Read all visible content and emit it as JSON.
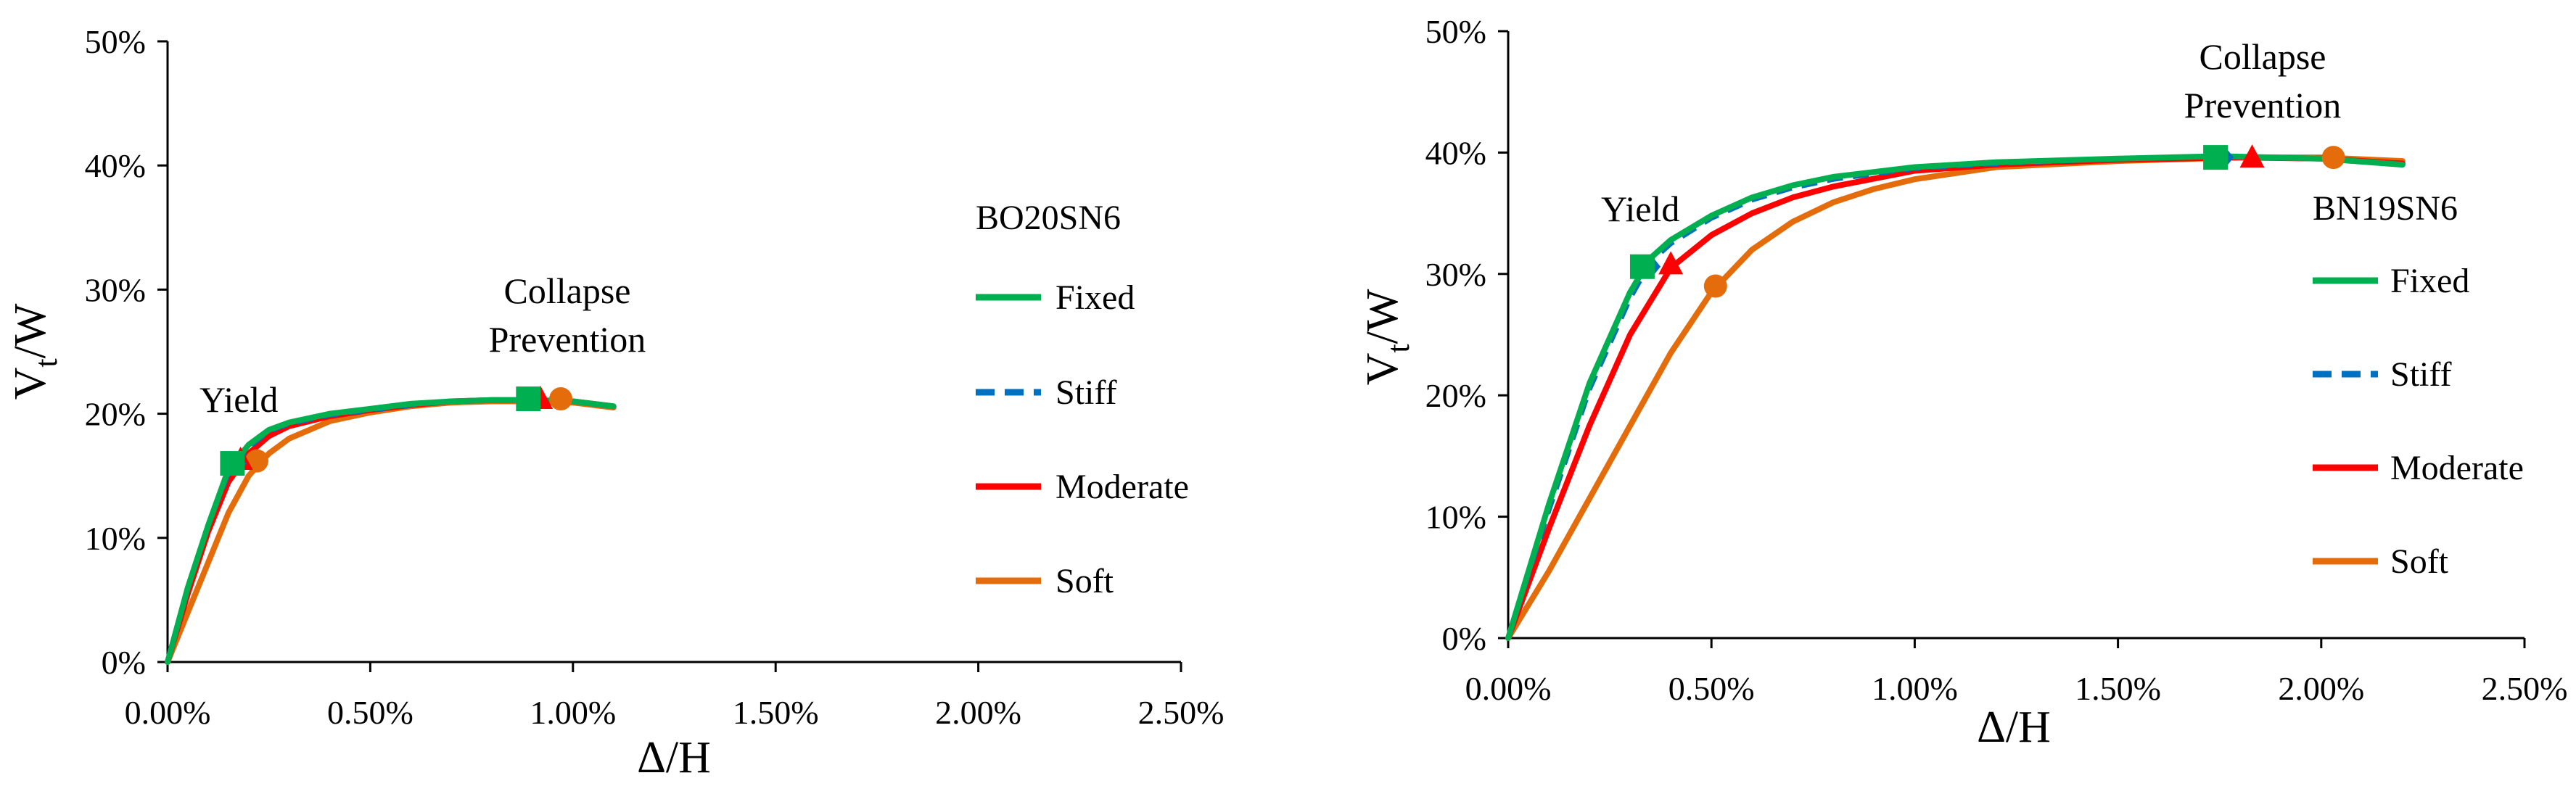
{
  "chart_data": [
    {
      "type": "line",
      "title": "",
      "xlabel": "Δ/H",
      "ylabel_main": "V",
      "ylabel_sub": "t",
      "ylabel_tail": "/W",
      "xlim": [
        0,
        2.5
      ],
      "ylim": [
        0,
        50
      ],
      "xticks": [
        0,
        0.5,
        1.0,
        1.5,
        2.0,
        2.5
      ],
      "xtick_labels": [
        "0.00%",
        "0.50%",
        "1.00%",
        "1.50%",
        "2.00%",
        "2.50%"
      ],
      "yticks": [
        0,
        10,
        20,
        30,
        40,
        50
      ],
      "ytick_labels": [
        "0%",
        "10%",
        "20%",
        "30%",
        "40%",
        "50%"
      ],
      "legend_title": "BO20SN6",
      "annotations": {
        "yield": "Yield",
        "collapse_1": "Collapse",
        "collapse_2": "Prevention"
      },
      "series": [
        {
          "name": "Fixed",
          "color": "#00B050",
          "dash": "solid",
          "x": [
            0,
            0.05,
            0.1,
            0.15,
            0.2,
            0.25,
            0.3,
            0.4,
            0.5,
            0.6,
            0.7,
            0.8,
            0.9,
            1.0,
            1.1
          ],
          "y": [
            0,
            6,
            11,
            15.5,
            17.5,
            18.7,
            19.3,
            20.0,
            20.4,
            20.8,
            21.0,
            21.1,
            21.1,
            21.0,
            20.6
          ],
          "markers": [
            {
              "x": 0.16,
              "y": 16.0,
              "shape": "square"
            },
            {
              "x": 0.89,
              "y": 21.2,
              "shape": "square"
            }
          ]
        },
        {
          "name": "Stiff",
          "color": "#0070C0",
          "dash": "dashed",
          "x": [
            0,
            0.05,
            0.1,
            0.15,
            0.2,
            0.25,
            0.3,
            0.4,
            0.5,
            0.6,
            0.7,
            0.8,
            0.9,
            1.0,
            1.1
          ],
          "y": [
            0,
            6,
            11,
            15.2,
            17.3,
            18.6,
            19.2,
            19.9,
            20.3,
            20.7,
            21.0,
            21.1,
            21.1,
            21.0,
            20.6
          ],
          "markers": [
            {
              "x": 0.17,
              "y": 16.0,
              "shape": "diamond"
            },
            {
              "x": 0.895,
              "y": 21.2,
              "shape": "diamond"
            }
          ]
        },
        {
          "name": "Moderate",
          "color": "#FF0000",
          "dash": "solid",
          "x": [
            0,
            0.05,
            0.1,
            0.15,
            0.2,
            0.25,
            0.3,
            0.4,
            0.5,
            0.6,
            0.7,
            0.8,
            0.9,
            1.0,
            1.1
          ],
          "y": [
            0,
            5.5,
            10.5,
            14.5,
            16.8,
            18.2,
            19.0,
            19.8,
            20.3,
            20.7,
            21.0,
            21.1,
            21.1,
            21.0,
            20.6
          ],
          "markers": [
            {
              "x": 0.18,
              "y": 16.3,
              "shape": "triangle"
            },
            {
              "x": 0.92,
              "y": 21.2,
              "shape": "triangle"
            }
          ]
        },
        {
          "name": "Soft",
          "color": "#E46C0A",
          "dash": "solid",
          "x": [
            0,
            0.05,
            0.1,
            0.15,
            0.2,
            0.25,
            0.3,
            0.4,
            0.5,
            0.6,
            0.7,
            0.8,
            0.9,
            1.0,
            1.1
          ],
          "y": [
            0,
            4,
            8,
            12,
            15,
            16.8,
            18.0,
            19.4,
            20.1,
            20.6,
            20.9,
            21.0,
            21.0,
            20.9,
            20.5
          ],
          "markers": [
            {
              "x": 0.22,
              "y": 16.2,
              "shape": "circle"
            },
            {
              "x": 0.97,
              "y": 21.2,
              "shape": "circle"
            }
          ]
        }
      ]
    },
    {
      "type": "line",
      "title": "",
      "xlabel": "Δ/H",
      "ylabel_main": "V",
      "ylabel_sub": "t",
      "ylabel_tail": "/W",
      "xlim": [
        0,
        2.5
      ],
      "ylim": [
        0,
        50
      ],
      "xticks": [
        0,
        0.5,
        1.0,
        1.5,
        2.0,
        2.5
      ],
      "xtick_labels": [
        "0.00%",
        "0.50%",
        "1.00%",
        "1.50%",
        "2.00%",
        "2.50%"
      ],
      "yticks": [
        0,
        10,
        20,
        30,
        40,
        50
      ],
      "ytick_labels": [
        "0%",
        "10%",
        "20%",
        "30%",
        "40%",
        "50%"
      ],
      "legend_title": "BN19SN6",
      "annotations": {
        "yield": "Yield",
        "collapse_1": "Collapse",
        "collapse_2": "Prevention"
      },
      "series": [
        {
          "name": "Fixed",
          "color": "#00B050",
          "dash": "solid",
          "x": [
            0,
            0.1,
            0.2,
            0.3,
            0.35,
            0.4,
            0.5,
            0.6,
            0.7,
            0.8,
            1.0,
            1.2,
            1.5,
            1.75,
            2.0,
            2.2
          ],
          "y": [
            0,
            11,
            21,
            28.5,
            31.3,
            32.8,
            34.8,
            36.3,
            37.3,
            38.0,
            38.8,
            39.2,
            39.5,
            39.7,
            39.5,
            39.0
          ],
          "markers": [
            {
              "x": 0.33,
              "y": 30.6,
              "shape": "square"
            },
            {
              "x": 1.74,
              "y": 39.6,
              "shape": "square"
            }
          ]
        },
        {
          "name": "Stiff",
          "color": "#0070C0",
          "dash": "dashed",
          "x": [
            0,
            0.1,
            0.2,
            0.3,
            0.35,
            0.4,
            0.5,
            0.6,
            0.7,
            0.8,
            1.0,
            1.2,
            1.5,
            1.75,
            2.0,
            2.2
          ],
          "y": [
            0,
            10.5,
            20.5,
            28.0,
            31.0,
            32.5,
            34.6,
            36.1,
            37.1,
            37.8,
            38.7,
            39.1,
            39.5,
            39.7,
            39.5,
            39.0
          ],
          "markers": [
            {
              "x": 0.35,
              "y": 30.6,
              "shape": "diamond"
            },
            {
              "x": 1.76,
              "y": 39.6,
              "shape": "diamond"
            }
          ]
        },
        {
          "name": "Moderate",
          "color": "#FF0000",
          "dash": "solid",
          "x": [
            0,
            0.1,
            0.2,
            0.3,
            0.4,
            0.5,
            0.6,
            0.7,
            0.8,
            1.0,
            1.2,
            1.5,
            1.8,
            2.0,
            2.2
          ],
          "y": [
            0,
            9,
            17.5,
            25.0,
            30.5,
            33.2,
            35.0,
            36.3,
            37.2,
            38.5,
            39.0,
            39.4,
            39.6,
            39.5,
            39.1
          ],
          "markers": [
            {
              "x": 0.4,
              "y": 30.8,
              "shape": "triangle"
            },
            {
              "x": 1.83,
              "y": 39.6,
              "shape": "triangle"
            }
          ]
        },
        {
          "name": "Soft",
          "color": "#E46C0A",
          "dash": "solid",
          "x": [
            0,
            0.1,
            0.2,
            0.3,
            0.4,
            0.5,
            0.6,
            0.7,
            0.8,
            0.9,
            1.0,
            1.2,
            1.5,
            1.8,
            2.0,
            2.2
          ],
          "y": [
            0,
            5.5,
            11.5,
            17.5,
            23.5,
            28.5,
            32.0,
            34.3,
            35.9,
            37.0,
            37.8,
            38.8,
            39.3,
            39.6,
            39.6,
            39.3
          ],
          "markers": [
            {
              "x": 0.51,
              "y": 29.0,
              "shape": "circle"
            },
            {
              "x": 2.03,
              "y": 39.6,
              "shape": "circle"
            }
          ]
        }
      ]
    }
  ]
}
